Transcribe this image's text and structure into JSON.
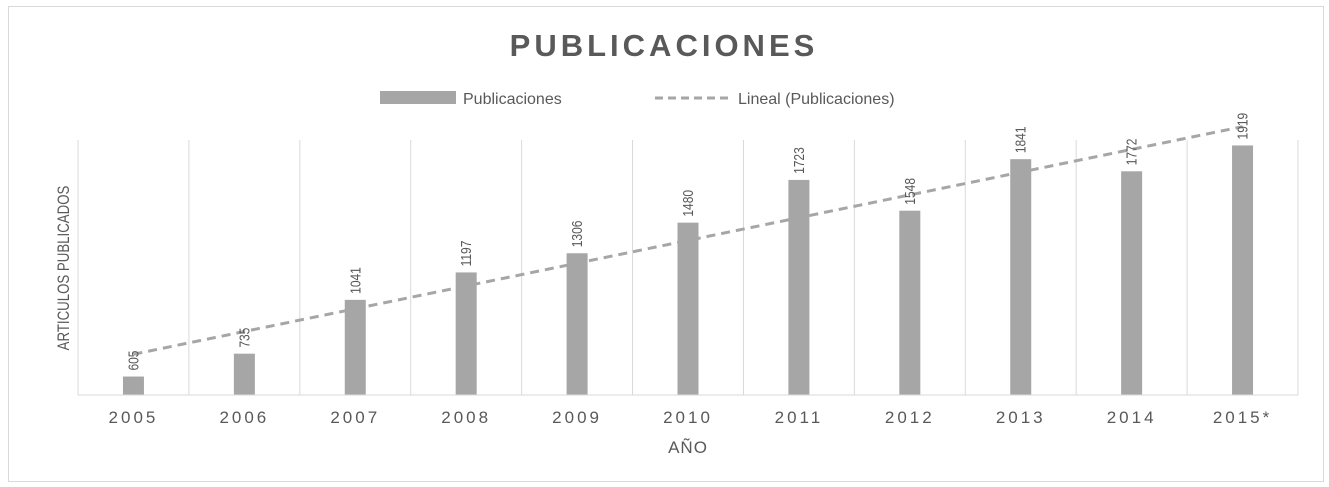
{
  "chart_data": {
    "type": "bar",
    "title": "PUBLICACIONES",
    "xlabel": "AÑO",
    "ylabel": "ARTICULOS PUBLICADOS",
    "categories": [
      "2005",
      "2006",
      "2007",
      "2008",
      "2009",
      "2010",
      "2011",
      "2012",
      "2013",
      "2014",
      "2015*"
    ],
    "series": [
      {
        "name": "Publicaciones",
        "values": [
          605,
          735,
          1041,
          1197,
          1306,
          1480,
          1723,
          1548,
          1841,
          1772,
          1919
        ]
      }
    ],
    "trendline": {
      "name": "Lineal (Publicaciones)",
      "kind": "linear"
    },
    "ylim": [
      500,
      1950
    ],
    "grid": "vertical",
    "legend_position": "top",
    "data_labels": true,
    "colors": {
      "bar": "#a6a6a6",
      "trend": "#a6a6a6",
      "grid": "#d9d9d9",
      "text": "#595959",
      "title": "#595959"
    }
  }
}
